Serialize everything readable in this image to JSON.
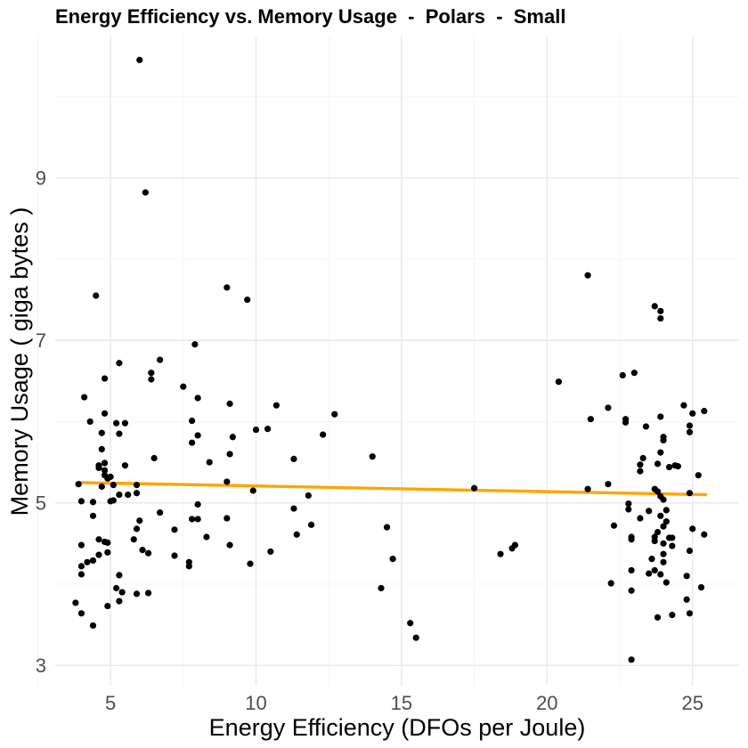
{
  "chart_data": {
    "type": "scatter",
    "title": "Energy Efficiency vs. Memory Usage  -  Polars  -  Small",
    "xlabel": "Energy Efficiency (DFOs per Joule)",
    "ylabel": "Memory Usage ( giga bytes )",
    "xlim": [
      3.1,
      26.6
    ],
    "ylim": [
      2.75,
      10.75
    ],
    "x_ticks": [
      5,
      10,
      15,
      20,
      25
    ],
    "x_tick_labels": [
      "5",
      "10",
      "15",
      "20",
      "25"
    ],
    "y_ticks": [
      3,
      5,
      7,
      9
    ],
    "y_tick_labels": [
      "3",
      "5",
      "7",
      "9"
    ],
    "x_minor_ticks": [
      2.5,
      7.5,
      12.5,
      17.5,
      22.5
    ],
    "y_minor_ticks": [
      4,
      6,
      8,
      10
    ],
    "grid": true,
    "legend": "none",
    "colors": {
      "points": "#000000",
      "trend": "#FFA500",
      "grid": "#ebebeb"
    },
    "trend_line": {
      "x": [
        3.9,
        25.5
      ],
      "y": [
        5.25,
        5.1
      ]
    },
    "points": [
      {
        "x": 6.0,
        "y": 10.45
      },
      {
        "x": 6.2,
        "y": 8.82
      },
      {
        "x": 9.0,
        "y": 7.65
      },
      {
        "x": 9.7,
        "y": 7.5
      },
      {
        "x": 4.5,
        "y": 7.55
      },
      {
        "x": 7.9,
        "y": 6.95
      },
      {
        "x": 5.3,
        "y": 6.72
      },
      {
        "x": 6.7,
        "y": 6.76
      },
      {
        "x": 6.4,
        "y": 6.6
      },
      {
        "x": 6.4,
        "y": 6.52
      },
      {
        "x": 4.8,
        "y": 6.53
      },
      {
        "x": 7.5,
        "y": 6.43
      },
      {
        "x": 4.1,
        "y": 6.3
      },
      {
        "x": 8.0,
        "y": 6.29
      },
      {
        "x": 9.1,
        "y": 6.22
      },
      {
        "x": 10.7,
        "y": 6.2
      },
      {
        "x": 4.8,
        "y": 6.1
      },
      {
        "x": 12.7,
        "y": 6.09
      },
      {
        "x": 4.3,
        "y": 6.0
      },
      {
        "x": 5.2,
        "y": 5.98
      },
      {
        "x": 5.5,
        "y": 5.98
      },
      {
        "x": 7.8,
        "y": 6.01
      },
      {
        "x": 10.0,
        "y": 5.9
      },
      {
        "x": 10.4,
        "y": 5.91
      },
      {
        "x": 4.7,
        "y": 5.86
      },
      {
        "x": 5.3,
        "y": 5.85
      },
      {
        "x": 8.0,
        "y": 5.83
      },
      {
        "x": 9.2,
        "y": 5.81
      },
      {
        "x": 12.3,
        "y": 5.84
      },
      {
        "x": 7.8,
        "y": 5.74
      },
      {
        "x": 4.7,
        "y": 5.66
      },
      {
        "x": 9.1,
        "y": 5.6
      },
      {
        "x": 14.0,
        "y": 5.57
      },
      {
        "x": 6.5,
        "y": 5.55
      },
      {
        "x": 11.3,
        "y": 5.54
      },
      {
        "x": 8.4,
        "y": 5.5
      },
      {
        "x": 4.8,
        "y": 5.49
      },
      {
        "x": 4.6,
        "y": 5.46
      },
      {
        "x": 5.5,
        "y": 5.46
      },
      {
        "x": 4.6,
        "y": 5.43
      },
      {
        "x": 4.8,
        "y": 5.4
      },
      {
        "x": 4.8,
        "y": 5.34
      },
      {
        "x": 5.0,
        "y": 5.32
      },
      {
        "x": 4.9,
        "y": 5.3
      },
      {
        "x": 3.9,
        "y": 5.23
      },
      {
        "x": 9.0,
        "y": 5.26
      },
      {
        "x": 4.7,
        "y": 5.2
      },
      {
        "x": 5.1,
        "y": 5.22
      },
      {
        "x": 5.9,
        "y": 5.22
      },
      {
        "x": 9.9,
        "y": 5.15
      },
      {
        "x": 17.5,
        "y": 5.18
      },
      {
        "x": 5.3,
        "y": 5.1
      },
      {
        "x": 5.6,
        "y": 5.1
      },
      {
        "x": 5.9,
        "y": 5.12
      },
      {
        "x": 11.8,
        "y": 5.09
      },
      {
        "x": 4.0,
        "y": 5.02
      },
      {
        "x": 4.4,
        "y": 5.01
      },
      {
        "x": 5.0,
        "y": 5.02
      },
      {
        "x": 5.1,
        "y": 5.03
      },
      {
        "x": 8.0,
        "y": 4.98
      },
      {
        "x": 11.3,
        "y": 4.93
      },
      {
        "x": 6.7,
        "y": 4.88
      },
      {
        "x": 4.4,
        "y": 4.84
      },
      {
        "x": 7.8,
        "y": 4.8
      },
      {
        "x": 8.0,
        "y": 4.8
      },
      {
        "x": 9.0,
        "y": 4.81
      },
      {
        "x": 6.0,
        "y": 4.78
      },
      {
        "x": 11.9,
        "y": 4.73
      },
      {
        "x": 7.2,
        "y": 4.67
      },
      {
        "x": 5.9,
        "y": 4.68
      },
      {
        "x": 14.5,
        "y": 4.7
      },
      {
        "x": 11.4,
        "y": 4.61
      },
      {
        "x": 8.3,
        "y": 4.58
      },
      {
        "x": 5.8,
        "y": 4.55
      },
      {
        "x": 4.6,
        "y": 4.55
      },
      {
        "x": 4.8,
        "y": 4.52
      },
      {
        "x": 4.9,
        "y": 4.51
      },
      {
        "x": 4.0,
        "y": 4.48
      },
      {
        "x": 9.1,
        "y": 4.48
      },
      {
        "x": 18.9,
        "y": 4.48
      },
      {
        "x": 18.8,
        "y": 4.44
      },
      {
        "x": 6.1,
        "y": 4.42
      },
      {
        "x": 6.3,
        "y": 4.38
      },
      {
        "x": 4.9,
        "y": 4.39
      },
      {
        "x": 4.6,
        "y": 4.36
      },
      {
        "x": 10.5,
        "y": 4.4
      },
      {
        "x": 18.4,
        "y": 4.37
      },
      {
        "x": 7.2,
        "y": 4.35
      },
      {
        "x": 4.4,
        "y": 4.29
      },
      {
        "x": 4.2,
        "y": 4.27
      },
      {
        "x": 7.7,
        "y": 4.27
      },
      {
        "x": 14.7,
        "y": 4.31
      },
      {
        "x": 4.0,
        "y": 4.22
      },
      {
        "x": 7.7,
        "y": 4.22
      },
      {
        "x": 9.8,
        "y": 4.25
      },
      {
        "x": 4.0,
        "y": 4.12
      },
      {
        "x": 5.3,
        "y": 4.11
      },
      {
        "x": 5.2,
        "y": 3.95
      },
      {
        "x": 5.4,
        "y": 3.9
      },
      {
        "x": 5.9,
        "y": 3.88
      },
      {
        "x": 6.3,
        "y": 3.89
      },
      {
        "x": 14.3,
        "y": 3.95
      },
      {
        "x": 3.8,
        "y": 3.77
      },
      {
        "x": 5.3,
        "y": 3.79
      },
      {
        "x": 4.9,
        "y": 3.73
      },
      {
        "x": 4.0,
        "y": 3.64
      },
      {
        "x": 4.4,
        "y": 3.49
      },
      {
        "x": 15.3,
        "y": 3.52
      },
      {
        "x": 15.5,
        "y": 3.34
      },
      {
        "x": 21.4,
        "y": 7.8
      },
      {
        "x": 23.7,
        "y": 7.42
      },
      {
        "x": 23.9,
        "y": 7.36
      },
      {
        "x": 23.9,
        "y": 7.27
      },
      {
        "x": 23.0,
        "y": 6.6
      },
      {
        "x": 22.6,
        "y": 6.57
      },
      {
        "x": 20.4,
        "y": 6.49
      },
      {
        "x": 24.7,
        "y": 6.2
      },
      {
        "x": 22.1,
        "y": 6.17
      },
      {
        "x": 25.4,
        "y": 6.13
      },
      {
        "x": 25.0,
        "y": 6.1
      },
      {
        "x": 23.9,
        "y": 6.06
      },
      {
        "x": 21.5,
        "y": 6.03
      },
      {
        "x": 22.7,
        "y": 6.03
      },
      {
        "x": 22.7,
        "y": 5.99
      },
      {
        "x": 24.9,
        "y": 5.95
      },
      {
        "x": 23.4,
        "y": 5.94
      },
      {
        "x": 24.9,
        "y": 5.87
      },
      {
        "x": 24.0,
        "y": 5.81
      },
      {
        "x": 24.0,
        "y": 5.77
      },
      {
        "x": 23.9,
        "y": 5.62
      },
      {
        "x": 23.3,
        "y": 5.55
      },
      {
        "x": 23.2,
        "y": 5.47
      },
      {
        "x": 23.8,
        "y": 5.48
      },
      {
        "x": 24.2,
        "y": 5.44
      },
      {
        "x": 24.4,
        "y": 5.46
      },
      {
        "x": 24.5,
        "y": 5.45
      },
      {
        "x": 23.2,
        "y": 5.39
      },
      {
        "x": 25.2,
        "y": 5.34
      },
      {
        "x": 22.1,
        "y": 5.23
      },
      {
        "x": 21.4,
        "y": 5.17
      },
      {
        "x": 23.7,
        "y": 5.17
      },
      {
        "x": 23.8,
        "y": 5.14
      },
      {
        "x": 24.9,
        "y": 5.12
      },
      {
        "x": 23.9,
        "y": 5.08
      },
      {
        "x": 24.0,
        "y": 5.04
      },
      {
        "x": 22.8,
        "y": 4.99
      },
      {
        "x": 22.8,
        "y": 4.92
      },
      {
        "x": 23.5,
        "y": 4.9
      },
      {
        "x": 24.1,
        "y": 4.91
      },
      {
        "x": 23.9,
        "y": 4.84
      },
      {
        "x": 23.2,
        "y": 4.81
      },
      {
        "x": 24.1,
        "y": 4.77
      },
      {
        "x": 22.3,
        "y": 4.72
      },
      {
        "x": 24.0,
        "y": 4.71
      },
      {
        "x": 25.0,
        "y": 4.68
      },
      {
        "x": 23.8,
        "y": 4.64
      },
      {
        "x": 25.4,
        "y": 4.61
      },
      {
        "x": 22.9,
        "y": 4.58
      },
      {
        "x": 23.7,
        "y": 4.58
      },
      {
        "x": 22.9,
        "y": 4.55
      },
      {
        "x": 24.2,
        "y": 4.57
      },
      {
        "x": 24.3,
        "y": 4.57
      },
      {
        "x": 23.7,
        "y": 4.53
      },
      {
        "x": 24.0,
        "y": 4.5
      },
      {
        "x": 24.3,
        "y": 4.47
      },
      {
        "x": 24.9,
        "y": 4.41
      },
      {
        "x": 24.0,
        "y": 4.37
      },
      {
        "x": 23.6,
        "y": 4.31
      },
      {
        "x": 24.0,
        "y": 4.27
      },
      {
        "x": 22.9,
        "y": 4.17
      },
      {
        "x": 23.7,
        "y": 4.17
      },
      {
        "x": 23.5,
        "y": 4.13
      },
      {
        "x": 23.9,
        "y": 4.12
      },
      {
        "x": 24.8,
        "y": 4.1
      },
      {
        "x": 24.1,
        "y": 4.02
      },
      {
        "x": 22.2,
        "y": 4.01
      },
      {
        "x": 25.3,
        "y": 3.96
      },
      {
        "x": 22.9,
        "y": 3.92
      },
      {
        "x": 24.8,
        "y": 3.81
      },
      {
        "x": 24.9,
        "y": 3.64
      },
      {
        "x": 24.3,
        "y": 3.62
      },
      {
        "x": 23.8,
        "y": 3.59
      },
      {
        "x": 22.9,
        "y": 3.07
      }
    ]
  }
}
